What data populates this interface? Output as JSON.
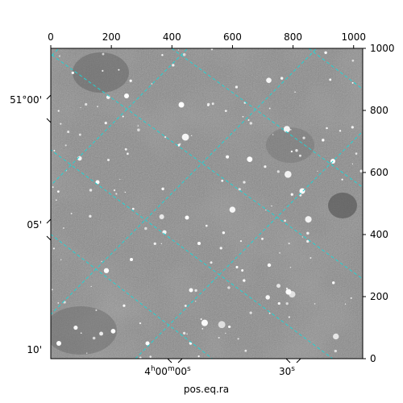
{
  "chart_data": {
    "type": "image",
    "image_description_colormap": "gray",
    "grid": true,
    "grid_color": "#22d3d3",
    "grid_style": "dashed",
    "pixel_axis_top": {
      "ticks": [
        0,
        200,
        400,
        600,
        800,
        1000
      ],
      "range": [
        0,
        1030
      ]
    },
    "pixel_axis_right": {
      "ticks": [
        0,
        200,
        400,
        600,
        800,
        1000
      ],
      "range": [
        0,
        1000
      ]
    },
    "dec_axis_left": {
      "tick_labels": [
        "51°00'",
        "05'",
        "10'"
      ]
    },
    "ra_axis_bottom": {
      "tick_labels": [
        "4h00m00s",
        "30s"
      ]
    },
    "xlabel": "pos.eq.ra"
  }
}
